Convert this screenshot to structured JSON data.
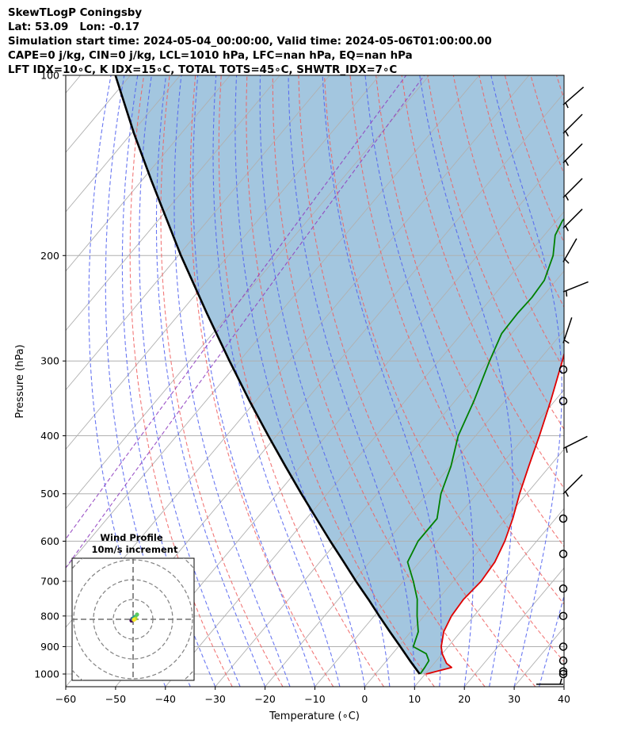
{
  "header": {
    "line1": "SkewTLogP Coningsby",
    "line2": "Lat: 53.09   Lon: -0.17",
    "line3": "Simulation start time: 2024-05-04_00:00:00, Valid time: 2024-05-06T01:00:00.00",
    "line4": "CAPE=0 j/kg, CIN=0 j/kg, LCL=1010 hPa, LFC=nan hPa, EQ=nan hPa",
    "line5": "LFT IDX=10∘C, K IDX=15∘C, TOTAL TOTS=45∘C, SHWTR_IDX=7∘C"
  },
  "chart_data": {
    "type": "line",
    "subtype": "skew-T log-P",
    "xlabel": "Temperature (∘C)",
    "ylabel": "Pressure (hPa)",
    "xlim": [
      -60,
      40
    ],
    "ylim": [
      1050,
      100
    ],
    "yscale": "log",
    "x_ticks": [
      "−60",
      "−50",
      "−40",
      "−30",
      "−20",
      "−10",
      "0",
      "10",
      "20",
      "30",
      "40"
    ],
    "y_ticks": [
      {
        "value": 1000,
        "label": "1000"
      },
      {
        "value": 900,
        "label": "900"
      },
      {
        "value": 800,
        "label": "800"
      },
      {
        "value": 700,
        "label": "700"
      },
      {
        "value": 600,
        "label": "600"
      },
      {
        "value": 500,
        "label": "500"
      },
      {
        "value": 400,
        "label": "400"
      },
      {
        "value": 300,
        "label": "300"
      },
      {
        "value": 200,
        "label": "200"
      },
      {
        "value": 100,
        "label": "100"
      }
    ],
    "grid": true,
    "colors": {
      "temperature": "#e00000",
      "dewpoint": "#008000",
      "parcel": "#000000",
      "shade": "#a3c6df",
      "dry_adiabats": "#f06060",
      "moist_adiabats": "#5060f0",
      "mixing_ratio": "#9040c0",
      "isotherms": "#b0b0b0"
    },
    "series": [
      {
        "key": "temperature",
        "points": [
          [
            1000,
            10.2
          ],
          [
            975,
            14.2
          ],
          [
            960,
            12.5
          ],
          [
            925,
            10.0
          ],
          [
            900,
            8.6
          ],
          [
            850,
            6.6
          ],
          [
            800,
            5.5
          ],
          [
            750,
            5.1
          ],
          [
            700,
            5.6
          ],
          [
            650,
            5.1
          ],
          [
            600,
            3.6
          ],
          [
            550,
            1.4
          ],
          [
            500,
            -1.4
          ],
          [
            450,
            -4.2
          ],
          [
            400,
            -7.2
          ],
          [
            350,
            -10.8
          ],
          [
            300,
            -15.2
          ],
          [
            275,
            -17.8
          ],
          [
            260,
            -19.0
          ],
          [
            250,
            -17.8
          ],
          [
            240,
            -17.5
          ],
          [
            225,
            -17.8
          ],
          [
            210,
            -18.2
          ],
          [
            200,
            -19.0
          ],
          [
            180,
            -21.6
          ],
          [
            160,
            -23.5
          ],
          [
            140,
            -27.2
          ],
          [
            120,
            -29.5
          ],
          [
            110,
            -31.0
          ],
          [
            100,
            -33.8
          ]
        ]
      },
      {
        "key": "dewpoint",
        "points": [
          [
            1000,
            9.0
          ],
          [
            975,
            8.8
          ],
          [
            950,
            8.5
          ],
          [
            925,
            6.8
          ],
          [
            900,
            3.0
          ],
          [
            850,
            1.5
          ],
          [
            800,
            -1.4
          ],
          [
            750,
            -4.2
          ],
          [
            700,
            -8.0
          ],
          [
            650,
            -12.4
          ],
          [
            600,
            -13.8
          ],
          [
            550,
            -13.8
          ],
          [
            500,
            -17.2
          ],
          [
            450,
            -19.8
          ],
          [
            400,
            -23.5
          ],
          [
            350,
            -26.2
          ],
          [
            300,
            -29.8
          ],
          [
            270,
            -32.0
          ],
          [
            250,
            -32.2
          ],
          [
            235,
            -32.0
          ],
          [
            220,
            -32.4
          ],
          [
            200,
            -34.8
          ],
          [
            185,
            -37.8
          ],
          [
            175,
            -38.8
          ],
          [
            165,
            -38.6
          ],
          [
            150,
            -39.8
          ],
          [
            130,
            -43.0
          ],
          [
            110,
            -46.6
          ],
          [
            100,
            -49.0
          ]
        ]
      },
      {
        "key": "parcel",
        "points": [
          [
            1000,
            8.9
          ],
          [
            950,
            4.7
          ],
          [
            900,
            0.4
          ],
          [
            850,
            -4.2
          ],
          [
            800,
            -9.0
          ],
          [
            750,
            -14.0
          ],
          [
            700,
            -19.5
          ],
          [
            650,
            -25.2
          ],
          [
            600,
            -31.4
          ],
          [
            550,
            -38.0
          ],
          [
            500,
            -45.2
          ],
          [
            450,
            -53.0
          ],
          [
            400,
            -61.6
          ],
          [
            350,
            -71.2
          ],
          [
            300,
            -82.0
          ],
          [
            250,
            -94.5
          ],
          [
            200,
            -109.5
          ],
          [
            150,
            -128.0
          ],
          [
            125,
            -139.5
          ],
          [
            100,
            -153.0
          ]
        ]
      }
    ],
    "wind_barbs": [
      {
        "p": 1040,
        "u": -2,
        "v": 0
      },
      {
        "p": 1000,
        "u": 0,
        "v": 0
      },
      {
        "p": 990,
        "u": 0,
        "v": 0
      },
      {
        "p": 950,
        "u": 0,
        "v": 0
      },
      {
        "p": 900,
        "u": 0,
        "v": 0
      },
      {
        "p": 800,
        "u": 0,
        "v": 0
      },
      {
        "p": 720,
        "u": 0,
        "v": 0
      },
      {
        "p": 630,
        "u": 0,
        "v": 0
      },
      {
        "p": 550,
        "u": 0,
        "v": 0
      },
      {
        "p": 500,
        "u": 6,
        "v": 6
      },
      {
        "p": 420,
        "u": 8,
        "v": 4
      },
      {
        "p": 350,
        "u": 0,
        "v": 0
      },
      {
        "p": 310,
        "u": 0,
        "v": 0
      },
      {
        "p": 280,
        "u": 2,
        "v": 6
      },
      {
        "p": 230,
        "u": 10,
        "v": 4
      },
      {
        "p": 205,
        "u": 4,
        "v": 7
      },
      {
        "p": 180,
        "u": 8,
        "v": 8
      },
      {
        "p": 160,
        "u": 8,
        "v": 8
      },
      {
        "p": 140,
        "u": 8,
        "v": 8
      },
      {
        "p": 125,
        "u": 7,
        "v": 7
      },
      {
        "p": 112,
        "u": 8,
        "v": 7
      }
    ],
    "inset": {
      "title": "Wind Profile",
      "subtitle": "10m/s increment",
      "hodograph": [
        [
          -0.4,
          -0.3
        ],
        [
          -0.2,
          0.1
        ],
        [
          0.1,
          0.3
        ],
        [
          0.5,
          0.6
        ],
        [
          1.0,
          1.2
        ],
        [
          0.6,
          0.2
        ],
        [
          0.2,
          -0.1
        ]
      ]
    }
  }
}
